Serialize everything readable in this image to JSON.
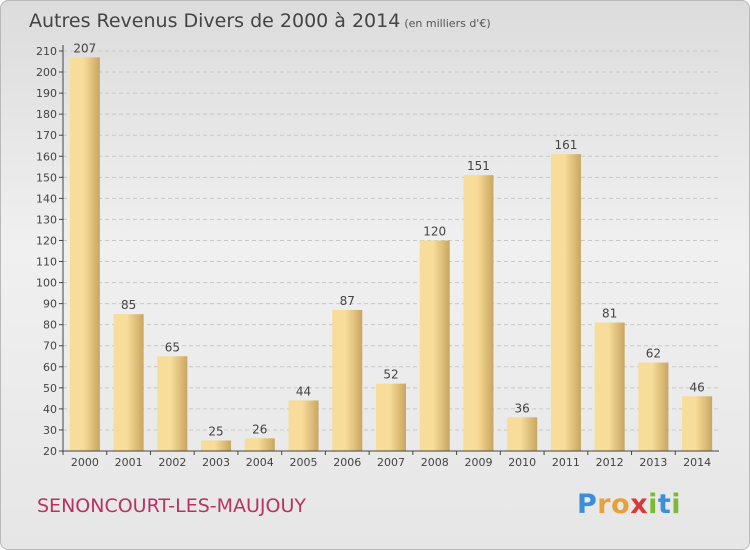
{
  "header": {
    "title": "Autres Revenus Divers de 2000 à 2014",
    "subtitle": "(en milliers d'€)"
  },
  "footer": {
    "commune": "SENONCOURT-LES-MAUJOUY",
    "logo_letters": [
      "P",
      "r",
      "o",
      "x",
      "i",
      "t",
      "i"
    ],
    "logo_colors": [
      "#3c8fd6",
      "#e8a13a",
      "#e8a13a",
      "#d83a3a",
      "#7abb32",
      "#3c8fd6",
      "#7abb32"
    ]
  },
  "colors": {
    "bar_light": "#f7dc9a",
    "bar_dark": "#c9a660",
    "axis": "#444444",
    "grid": "#c8c8c8"
  },
  "chart_data": {
    "type": "bar",
    "categories": [
      "2000",
      "2001",
      "2002",
      "2003",
      "2004",
      "2005",
      "2006",
      "2007",
      "2008",
      "2009",
      "2010",
      "2011",
      "2012",
      "2013",
      "2014"
    ],
    "values": [
      207,
      85,
      65,
      25,
      26,
      44,
      87,
      52,
      120,
      151,
      36,
      161,
      81,
      62,
      46
    ],
    "ylim": [
      20,
      210
    ],
    "yticks": [
      20,
      30,
      40,
      50,
      60,
      70,
      80,
      90,
      100,
      110,
      120,
      130,
      140,
      150,
      160,
      170,
      180,
      190,
      200,
      210
    ],
    "grid": true
  }
}
